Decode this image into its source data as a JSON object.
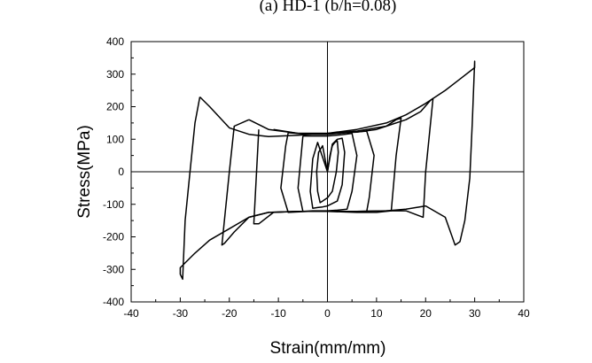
{
  "chart_data": {
    "type": "line",
    "title": "(a) HD-1 (b/h=0.08)",
    "xlabel": "Strain(mm/mm)",
    "ylabel": "Stress(MPa)",
    "xlim": [
      -40,
      40
    ],
    "ylim": [
      -400,
      400
    ],
    "xticks": [
      -40,
      -30,
      -20,
      -10,
      0,
      10,
      20,
      30,
      40
    ],
    "yticks": [
      -400,
      -300,
      -200,
      -100,
      0,
      100,
      200,
      300,
      400
    ],
    "zero_lines": true,
    "grid": false,
    "legend": "none",
    "series": [
      {
        "x": [
          0,
          0.5,
          1,
          1.5,
          2,
          2.2,
          1.8,
          1,
          0,
          -1,
          -1.5,
          -2,
          -2.2,
          -1.8,
          -1,
          0
        ],
        "y": [
          0,
          50,
          80,
          90,
          95,
          60,
          0,
          -60,
          -80,
          -90,
          -95,
          -60,
          0,
          60,
          80,
          0
        ]
      },
      {
        "x": [
          0,
          1,
          2,
          3,
          3.5,
          3,
          2,
          0,
          -1,
          -2,
          -3,
          -3.5,
          -3,
          -2,
          0
        ],
        "y": [
          0,
          85,
          100,
          103,
          60,
          -40,
          -90,
          -105,
          -108,
          -110,
          -112,
          -60,
          40,
          90,
          0
        ]
      },
      {
        "x": [
          -5,
          -3,
          0,
          3,
          5,
          6,
          5,
          4,
          2,
          0,
          -3,
          -5,
          -6,
          -5
        ],
        "y": [
          110,
          110,
          110,
          114,
          118,
          50,
          -60,
          -115,
          -118,
          -120,
          -120,
          -122,
          -50,
          110
        ]
      },
      {
        "x": [
          -8,
          -4,
          0,
          4,
          8,
          9.5,
          8.5,
          8,
          4,
          0,
          -4,
          -8,
          -9.5,
          -8.5,
          -8
        ],
        "y": [
          120,
          115,
          115,
          120,
          125,
          50,
          -80,
          -122,
          -122,
          -122,
          -122,
          -125,
          -50,
          80,
          120
        ]
      },
      {
        "x": [
          -11,
          -6,
          0,
          6,
          10,
          12,
          14,
          15,
          14,
          13,
          10,
          6,
          0,
          -6,
          -11,
          -14,
          -15,
          -14
        ],
        "y": [
          130,
          118,
          118,
          122,
          130,
          140,
          160,
          165,
          50,
          -120,
          -125,
          -125,
          -122,
          -122,
          -125,
          -160,
          -160,
          130
        ]
      },
      {
        "x": [
          -16,
          -12,
          -6,
          0,
          6,
          12,
          16,
          19,
          21,
          21.5,
          20,
          19.5,
          16,
          12,
          6,
          0,
          -6,
          -12,
          -16,
          -19,
          -21,
          -21.5,
          -20,
          -19,
          -16
        ],
        "y": [
          160,
          130,
          118,
          118,
          125,
          140,
          160,
          185,
          220,
          225,
          0,
          -140,
          -120,
          -120,
          -122,
          -122,
          -122,
          -125,
          -140,
          -185,
          -220,
          -225,
          0,
          140,
          160
        ]
      },
      {
        "x": [
          -26,
          -24,
          -20,
          -16,
          -12,
          -6,
          0,
          6,
          12,
          16,
          20,
          24,
          27,
          30,
          30,
          29.5,
          29,
          28,
          27,
          26,
          24,
          20,
          16,
          12,
          6,
          0,
          -6,
          -12,
          -16,
          -20,
          -24,
          -27,
          -30,
          -30,
          -29.5,
          -29,
          -28,
          -27,
          -26
        ],
        "y": [
          230,
          200,
          135,
          115,
          108,
          112,
          118,
          130,
          150,
          175,
          210,
          250,
          285,
          320,
          340,
          150,
          -20,
          -150,
          -215,
          -225,
          -140,
          -105,
          -115,
          -120,
          -122,
          -122,
          -122,
          -125,
          -140,
          -175,
          -210,
          -250,
          -295,
          -315,
          -330,
          -150,
          0,
          150,
          230
        ]
      }
    ]
  }
}
